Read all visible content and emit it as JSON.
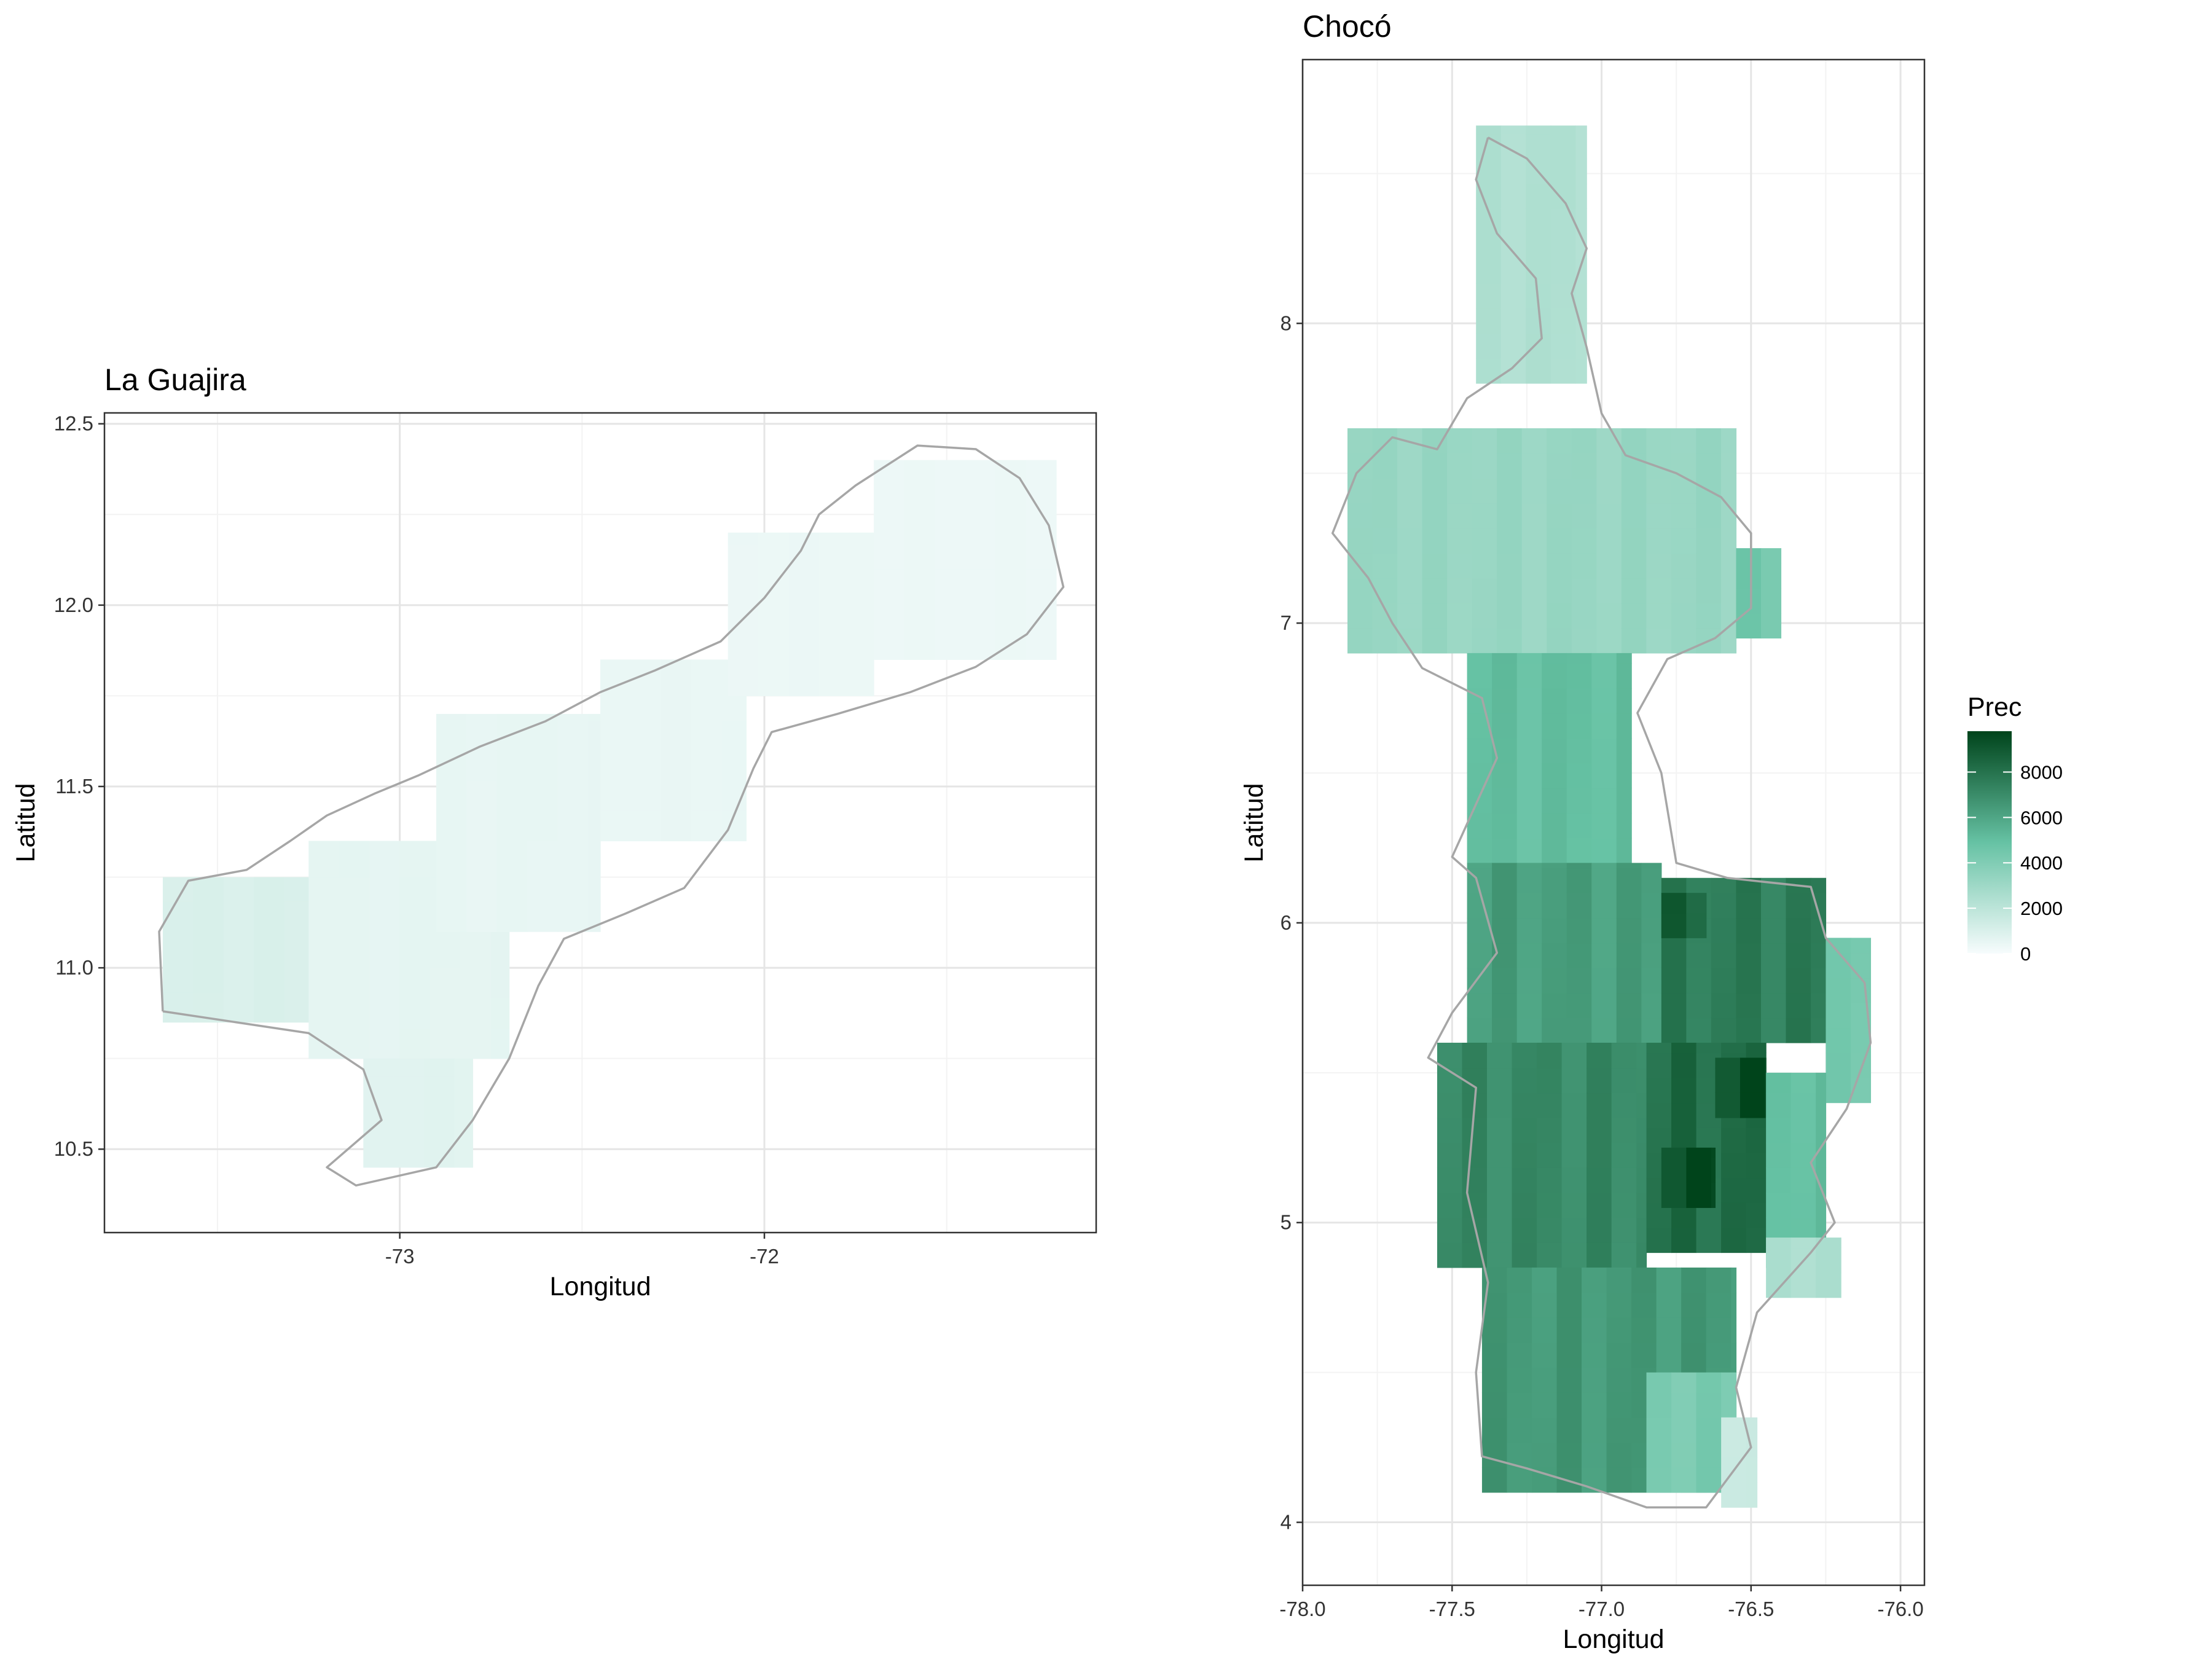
{
  "colors": {
    "panel_background": "#ffffff",
    "grid_major": "#e5e5e5",
    "grid_minor": "#f3f3f3",
    "panel_border": "#333333",
    "coastline": "#a6a6a6",
    "scale_low": "#f7fcfd",
    "scale_mid": "#66c2a4",
    "scale_high": "#00441b"
  },
  "legend": {
    "title": "Prec",
    "breaks": [
      8000,
      6000,
      4000,
      2000,
      0
    ],
    "labels": [
      "8000",
      "6000",
      "4000",
      "2000",
      "0"
    ],
    "limits": [
      0,
      9800
    ]
  },
  "chart_data": [
    {
      "type": "heatmap",
      "title": "La Guajira",
      "xlabel": "Longitud",
      "ylabel": "Latitud",
      "xlim": [
        -73.81,
        -71.09
      ],
      "ylim": [
        10.27,
        12.53
      ],
      "x_ticks": [
        -73,
        -72
      ],
      "x_tick_labels": [
        "-73",
        "-72"
      ],
      "y_ticks": [
        10.5,
        11.0,
        11.5,
        12.0,
        12.5
      ],
      "y_tick_labels": [
        "10.5",
        "11.0",
        "11.5",
        "12.0",
        "12.5"
      ],
      "grid": true,
      "fill_variable": "Prec",
      "cell_size_deg": 0.0833,
      "region_outline": [
        [
          -73.65,
          10.88
        ],
        [
          -73.66,
          11.1
        ],
        [
          -73.58,
          11.24
        ],
        [
          -73.42,
          11.27
        ],
        [
          -73.3,
          11.35
        ],
        [
          -73.2,
          11.42
        ],
        [
          -73.07,
          11.48
        ],
        [
          -72.95,
          11.53
        ],
        [
          -72.78,
          11.61
        ],
        [
          -72.6,
          11.68
        ],
        [
          -72.45,
          11.76
        ],
        [
          -72.3,
          11.82
        ],
        [
          -72.12,
          11.9
        ],
        [
          -72.0,
          12.02
        ],
        [
          -71.9,
          12.15
        ],
        [
          -71.85,
          12.25
        ],
        [
          -71.75,
          12.33
        ],
        [
          -71.58,
          12.44
        ],
        [
          -71.42,
          12.43
        ],
        [
          -71.3,
          12.35
        ],
        [
          -71.22,
          12.22
        ],
        [
          -71.18,
          12.05
        ],
        [
          -71.28,
          11.92
        ],
        [
          -71.42,
          11.83
        ],
        [
          -71.6,
          11.76
        ],
        [
          -71.8,
          11.7
        ],
        [
          -71.98,
          11.65
        ],
        [
          -72.03,
          11.55
        ],
        [
          -72.1,
          11.38
        ],
        [
          -72.22,
          11.22
        ],
        [
          -72.38,
          11.15
        ],
        [
          -72.55,
          11.08
        ],
        [
          -72.62,
          10.95
        ],
        [
          -72.7,
          10.75
        ],
        [
          -72.8,
          10.58
        ],
        [
          -72.9,
          10.45
        ],
        [
          -73.12,
          10.4
        ],
        [
          -73.2,
          10.45
        ],
        [
          -73.05,
          10.58
        ],
        [
          -73.1,
          10.72
        ],
        [
          -73.25,
          10.82
        ],
        [
          -73.45,
          10.85
        ],
        [
          -73.65,
          10.88
        ]
      ],
      "region_cells": [
        {
          "lon_min": -73.65,
          "lon_max": -73.25,
          "lat_min": 10.85,
          "lat_max": 11.25,
          "prec": 1000
        },
        {
          "lon_min": -73.25,
          "lon_max": -72.7,
          "lat_min": 10.75,
          "lat_max": 11.35,
          "prec": 600
        },
        {
          "lon_min": -73.1,
          "lon_max": -72.8,
          "lat_min": 10.45,
          "lat_max": 10.75,
          "prec": 750
        },
        {
          "lon_min": -72.9,
          "lon_max": -72.45,
          "lat_min": 11.1,
          "lat_max": 11.7,
          "prec": 520
        },
        {
          "lon_min": -72.45,
          "lon_max": -72.05,
          "lat_min": 11.35,
          "lat_max": 11.85,
          "prec": 450
        },
        {
          "lon_min": -72.1,
          "lon_max": -71.7,
          "lat_min": 11.75,
          "lat_max": 12.2,
          "prec": 380
        },
        {
          "lon_min": -71.7,
          "lon_max": -71.2,
          "lat_min": 11.85,
          "lat_max": 12.4,
          "prec": 350
        }
      ]
    },
    {
      "type": "heatmap",
      "title": "Chocó",
      "xlabel": "Longitud",
      "ylabel": "Latitud",
      "xlim": [
        -78.0,
        -75.92
      ],
      "ylim": [
        3.79,
        8.88
      ],
      "x_ticks": [
        -78.0,
        -77.5,
        -77.0,
        -76.5,
        -76.0
      ],
      "x_tick_labels": [
        "-78.0",
        "-77.5",
        "-77.0",
        "-76.5",
        "-76.0"
      ],
      "y_ticks": [
        4,
        5,
        6,
        7,
        8
      ],
      "y_tick_labels": [
        "4",
        "5",
        "6",
        "7",
        "8"
      ],
      "grid": true,
      "fill_variable": "Prec",
      "cell_size_deg": 0.0833,
      "region_outline": [
        [
          -77.38,
          8.62
        ],
        [
          -77.25,
          8.55
        ],
        [
          -77.12,
          8.4
        ],
        [
          -77.05,
          8.25
        ],
        [
          -77.1,
          8.1
        ],
        [
          -77.05,
          7.92
        ],
        [
          -77.0,
          7.7
        ],
        [
          -76.92,
          7.56
        ],
        [
          -76.75,
          7.5
        ],
        [
          -76.6,
          7.42
        ],
        [
          -76.5,
          7.3
        ],
        [
          -76.5,
          7.05
        ],
        [
          -76.62,
          6.95
        ],
        [
          -76.78,
          6.88
        ],
        [
          -76.88,
          6.7
        ],
        [
          -76.8,
          6.5
        ],
        [
          -76.75,
          6.2
        ],
        [
          -76.58,
          6.15
        ],
        [
          -76.3,
          6.12
        ],
        [
          -76.25,
          5.95
        ],
        [
          -76.12,
          5.8
        ],
        [
          -76.1,
          5.6
        ],
        [
          -76.18,
          5.38
        ],
        [
          -76.3,
          5.2
        ],
        [
          -76.22,
          5.0
        ],
        [
          -76.3,
          4.9
        ],
        [
          -76.48,
          4.7
        ],
        [
          -76.55,
          4.45
        ],
        [
          -76.5,
          4.25
        ],
        [
          -76.65,
          4.05
        ],
        [
          -76.85,
          4.05
        ],
        [
          -77.05,
          4.12
        ],
        [
          -77.25,
          4.18
        ],
        [
          -77.4,
          4.22
        ],
        [
          -77.42,
          4.5
        ],
        [
          -77.38,
          4.8
        ],
        [
          -77.45,
          5.1
        ],
        [
          -77.42,
          5.45
        ],
        [
          -77.58,
          5.55
        ],
        [
          -77.5,
          5.7
        ],
        [
          -77.35,
          5.9
        ],
        [
          -77.42,
          6.15
        ],
        [
          -77.5,
          6.22
        ],
        [
          -77.35,
          6.55
        ],
        [
          -77.4,
          6.75
        ],
        [
          -77.6,
          6.85
        ],
        [
          -77.7,
          7.0
        ],
        [
          -77.78,
          7.15
        ],
        [
          -77.9,
          7.3
        ],
        [
          -77.82,
          7.5
        ],
        [
          -77.7,
          7.62
        ],
        [
          -77.55,
          7.58
        ],
        [
          -77.45,
          7.75
        ],
        [
          -77.3,
          7.85
        ],
        [
          -77.2,
          7.95
        ],
        [
          -77.22,
          8.15
        ],
        [
          -77.35,
          8.3
        ],
        [
          -77.42,
          8.48
        ],
        [
          -77.38,
          8.62
        ]
      ],
      "region_cells": [
        {
          "lon_min": -77.42,
          "lon_max": -77.05,
          "lat_min": 7.8,
          "lat_max": 8.66,
          "prec": 2400
        },
        {
          "lon_min": -77.85,
          "lon_max": -76.55,
          "lat_min": 6.9,
          "lat_max": 7.65,
          "prec": 3200
        },
        {
          "lon_min": -76.55,
          "lon_max": -76.4,
          "lat_min": 6.95,
          "lat_max": 7.25,
          "prec": 4500
        },
        {
          "lon_min": -77.45,
          "lon_max": -76.9,
          "lat_min": 6.2,
          "lat_max": 6.9,
          "prec": 5000
        },
        {
          "lon_min": -77.45,
          "lon_max": -76.8,
          "lat_min": 5.6,
          "lat_max": 6.2,
          "prec": 6300
        },
        {
          "lon_min": -76.8,
          "lon_max": -76.25,
          "lat_min": 5.6,
          "lat_max": 6.15,
          "prec": 7600
        },
        {
          "lon_min": -76.8,
          "lon_max": -76.65,
          "lat_min": 5.95,
          "lat_max": 6.1,
          "prec": 8800
        },
        {
          "lon_min": -76.25,
          "lon_max": -76.1,
          "lat_min": 5.4,
          "lat_max": 5.95,
          "prec": 4300
        },
        {
          "lon_min": -77.55,
          "lon_max": -76.85,
          "lat_min": 4.85,
          "lat_max": 5.6,
          "prec": 7100
        },
        {
          "lon_min": -76.85,
          "lon_max": -76.45,
          "lat_min": 4.9,
          "lat_max": 5.6,
          "prec": 8200
        },
        {
          "lon_min": -76.62,
          "lon_max": -76.45,
          "lat_min": 5.35,
          "lat_max": 5.55,
          "prec": 9500
        },
        {
          "lon_min": -76.8,
          "lon_max": -76.62,
          "lat_min": 5.05,
          "lat_max": 5.25,
          "prec": 9600
        },
        {
          "lon_min": -76.45,
          "lon_max": -76.25,
          "lat_min": 4.85,
          "lat_max": 5.5,
          "prec": 5000
        },
        {
          "lon_min": -76.45,
          "lon_max": -76.2,
          "lat_min": 4.75,
          "lat_max": 4.95,
          "prec": 2500
        },
        {
          "lon_min": -77.4,
          "lon_max": -76.55,
          "lat_min": 4.1,
          "lat_max": 4.85,
          "prec": 6500
        },
        {
          "lon_min": -76.85,
          "lon_max": -76.55,
          "lat_min": 4.1,
          "lat_max": 4.5,
          "prec": 4200
        },
        {
          "lon_min": -76.6,
          "lon_max": -76.48,
          "lat_min": 4.05,
          "lat_max": 4.35,
          "prec": 1500
        }
      ]
    }
  ]
}
